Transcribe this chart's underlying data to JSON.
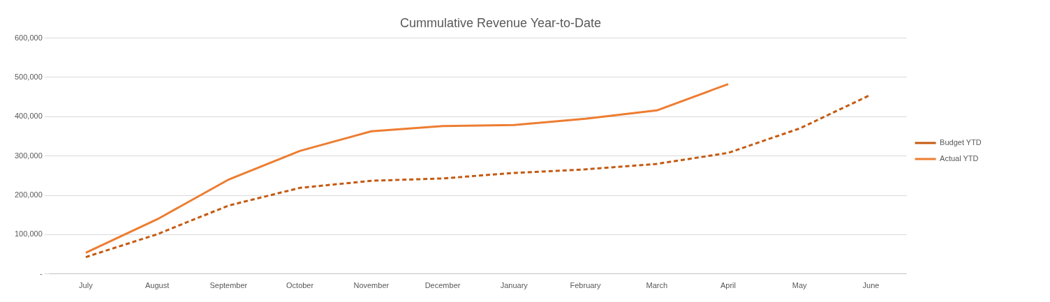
{
  "chart_data": {
    "type": "line",
    "title": "Cummulative Revenue Year-to-Date",
    "categories": [
      "July",
      "August",
      "September",
      "October",
      "November",
      "December",
      "January",
      "February",
      "March",
      "April",
      "May",
      "June"
    ],
    "series": [
      {
        "name": "Budget YTD",
        "color": "#c55a11",
        "line_style": "dashed",
        "values": [
          43000,
          101000,
          174000,
          219000,
          237000,
          243000,
          257000,
          266000,
          280000,
          308000,
          370000,
          456000
        ]
      },
      {
        "name": "Actual YTD",
        "color": "#ed7d31",
        "line_style": "solid",
        "values": [
          54000,
          139000,
          240000,
          313000,
          363000,
          376000,
          379000,
          395000,
          416000,
          483000,
          null,
          null
        ]
      }
    ],
    "ylim": [
      0,
      600000
    ],
    "yticks": [
      {
        "value": 0,
        "label": "-"
      },
      {
        "value": 100000,
        "label": "100,000"
      },
      {
        "value": 200000,
        "label": "200,000"
      },
      {
        "value": 300000,
        "label": "300,000"
      },
      {
        "value": 400000,
        "label": "400,000"
      },
      {
        "value": 500000,
        "label": "500,000"
      },
      {
        "value": 600000,
        "label": "600,000"
      }
    ],
    "grid": "y",
    "legend": "right",
    "marker": "none"
  }
}
